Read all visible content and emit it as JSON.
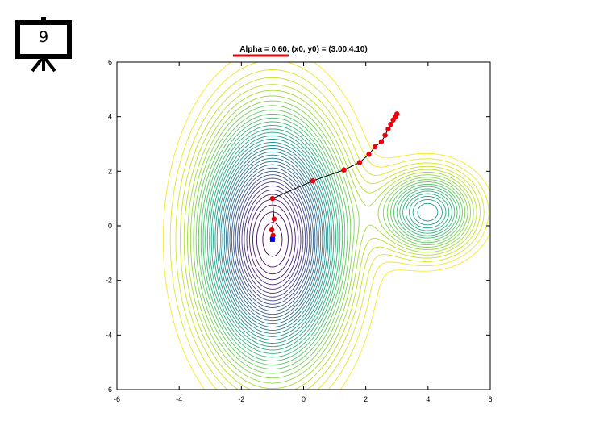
{
  "slide": {
    "number": "9",
    "icon": "presentation-board-icon"
  },
  "chart_data": {
    "type": "contour",
    "title": "Alpha = 0.60, (x0, y0) = (3.00,4.10)",
    "xlabel": "",
    "ylabel": "",
    "xlim": [
      -6,
      6
    ],
    "ylim": [
      -6,
      6
    ],
    "xticks": [
      -6,
      -4,
      -2,
      0,
      2,
      4,
      6
    ],
    "yticks": [
      -6,
      -4,
      -2,
      0,
      2,
      4,
      6
    ],
    "grid": false,
    "colormap": "viridis",
    "colors": {
      "path_point": "#e8000b",
      "path_line": "#000000",
      "end_point": "#0000ff",
      "title_underline": "#e8000b"
    },
    "minima": [
      {
        "x": -1.0,
        "y": -0.5,
        "label": ""
      },
      {
        "x": 4.0,
        "y": 0.5,
        "label": ""
      }
    ],
    "path": {
      "x": [
        3.0,
        2.95,
        2.88,
        2.8,
        2.72,
        2.62,
        2.5,
        2.3,
        2.1,
        1.8,
        1.3,
        0.3,
        -1.0,
        -0.95,
        -1.02,
        -0.98,
        -1.0,
        -1.0
      ],
      "y": [
        4.1,
        4.0,
        3.88,
        3.72,
        3.55,
        3.32,
        3.08,
        2.9,
        2.62,
        2.32,
        2.05,
        1.65,
        1.0,
        0.25,
        -0.15,
        -0.35,
        -0.45,
        -0.48
      ]
    },
    "end_point": {
      "x": -1.0,
      "y": -0.5
    }
  }
}
